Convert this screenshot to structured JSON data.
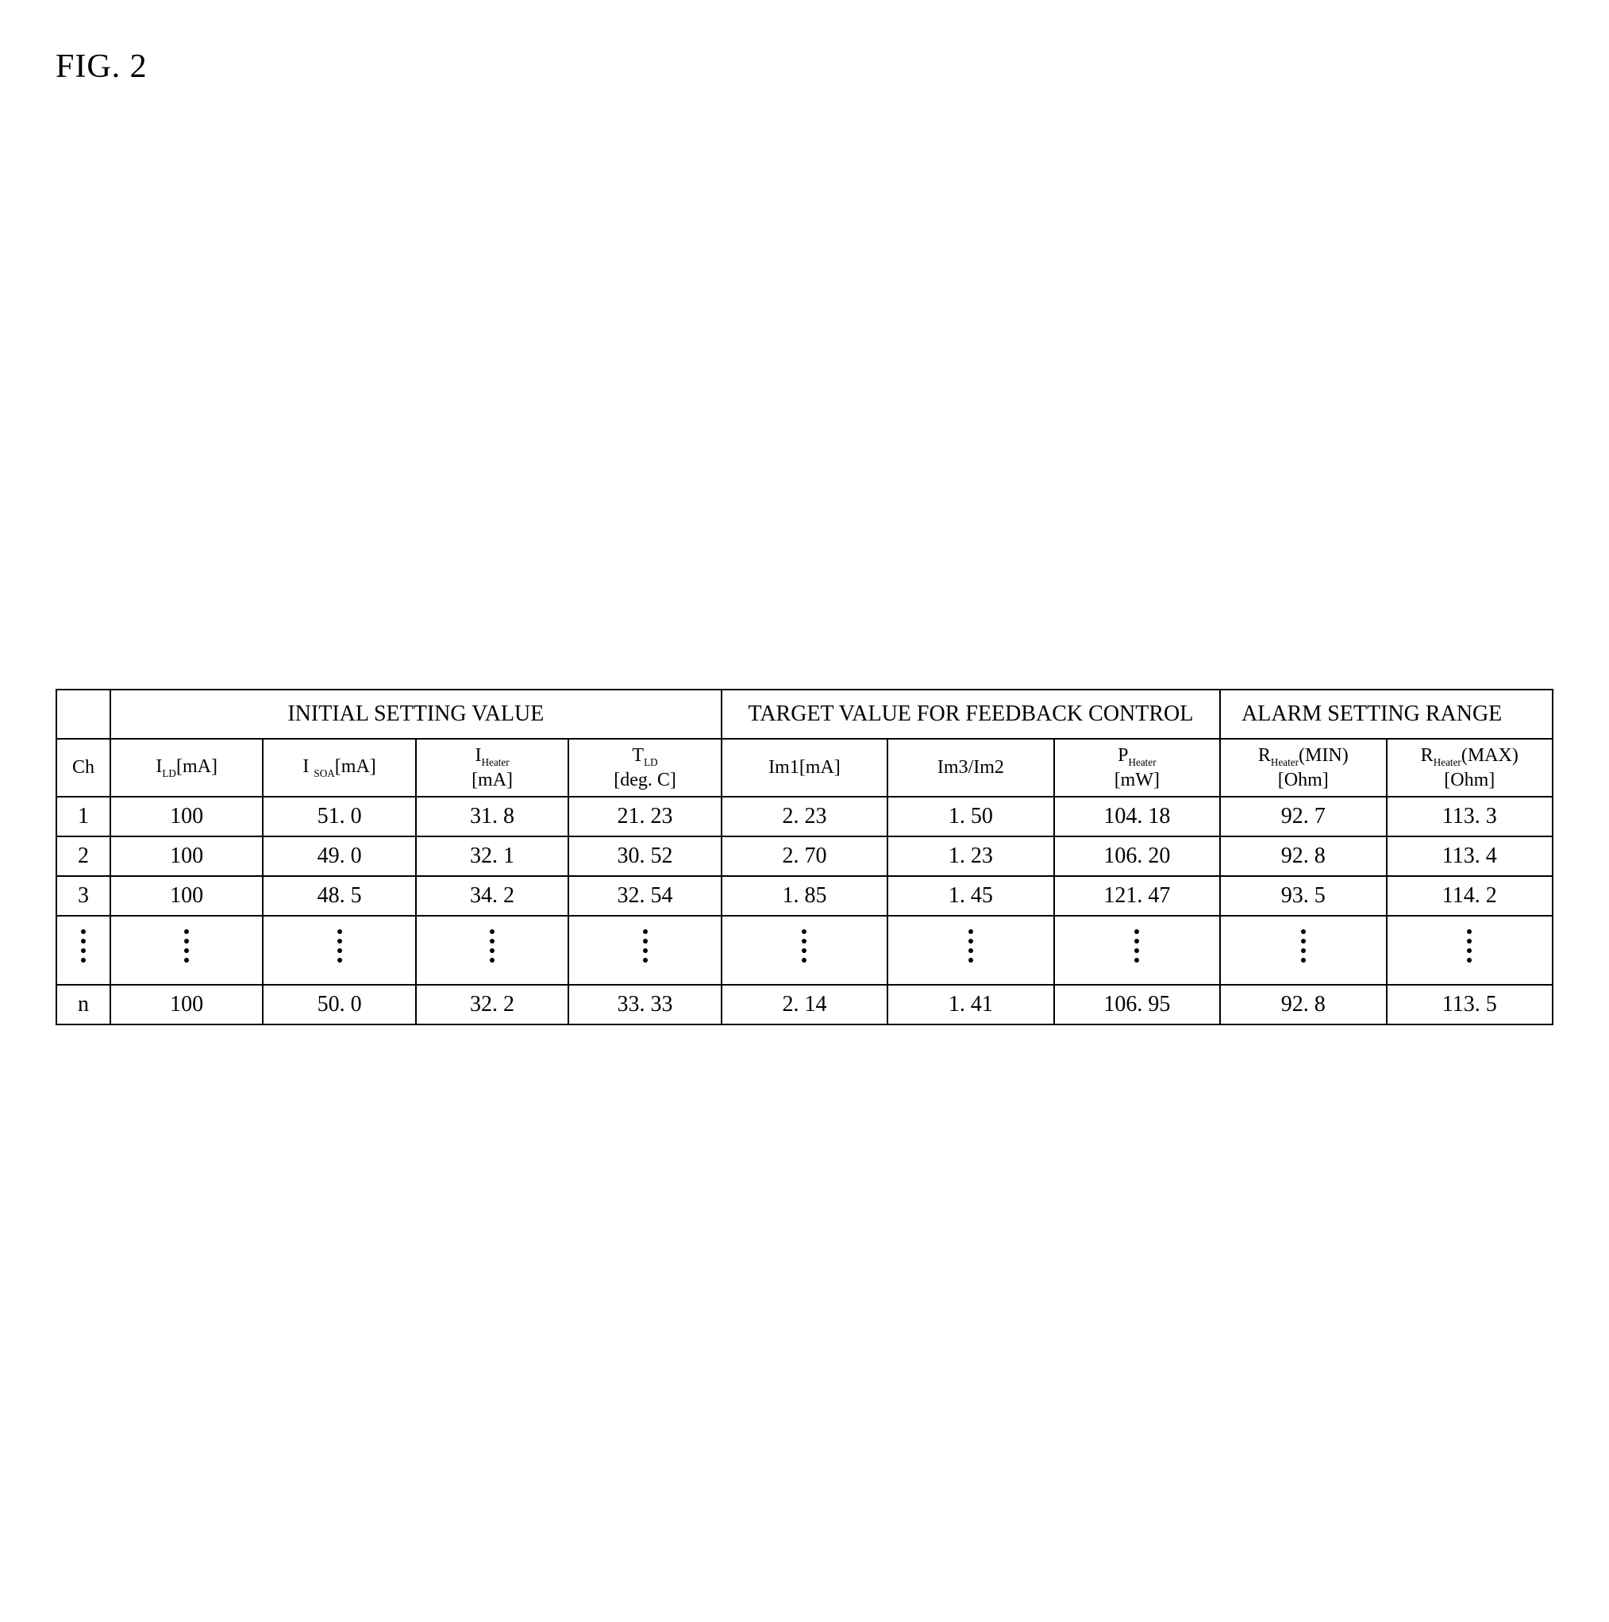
{
  "figure_label": "FIG. 2",
  "group_headers": {
    "initial": "INITIAL SETTING VALUE",
    "target": "TARGET VALUE FOR FEEDBACK CONTROL",
    "alarm": "ALARM SETTING RANGE"
  },
  "columns": {
    "ch": "Ch",
    "ild_html": "I<sub>LD</sub>[mA]",
    "isoa_html": "I <sub>SOA</sub>[mA]",
    "iheater_html": "I<sub>Heater</sub><br>[mA]",
    "tld_html": "T<sub>LD</sub><br>[deg. C]",
    "im1_html": "Im1[mA]",
    "im32_html": "Im3/Im2",
    "pheater_html": "P<sub>Heater</sub><br>[mW]",
    "rmin_html": "R<sub>Heater</sub>(MIN)<br>[Ohm]",
    "rmax_html": "R<sub>Heater</sub>(MAX)<br>[Ohm]"
  },
  "rows": [
    {
      "ch": "1",
      "ild": "100",
      "isoa": "51. 0",
      "iheater": "31. 8",
      "tld": "21. 23",
      "im1": "2. 23",
      "im32": "1. 50",
      "pheater": "104. 18",
      "rmin": "92. 7",
      "rmax": "113. 3"
    },
    {
      "ch": "2",
      "ild": "100",
      "isoa": "49. 0",
      "iheater": "32. 1",
      "tld": "30. 52",
      "im1": "2. 70",
      "im32": "1. 23",
      "pheater": "106. 20",
      "rmin": "92. 8",
      "rmax": "113. 4"
    },
    {
      "ch": "3",
      "ild": "100",
      "isoa": "48. 5",
      "iheater": "34. 2",
      "tld": "32. 54",
      "im1": "1. 85",
      "im32": "1. 45",
      "pheater": "121. 47",
      "rmin": "93. 5",
      "rmax": "114. 2"
    }
  ],
  "last_row": {
    "ch": "n",
    "ild": "100",
    "isoa": "50. 0",
    "iheater": "32. 2",
    "tld": "33. 33",
    "im1": "2. 14",
    "im32": "1. 41",
    "pheater": "106. 95",
    "rmin": "92. 8",
    "rmax": "113. 5"
  }
}
